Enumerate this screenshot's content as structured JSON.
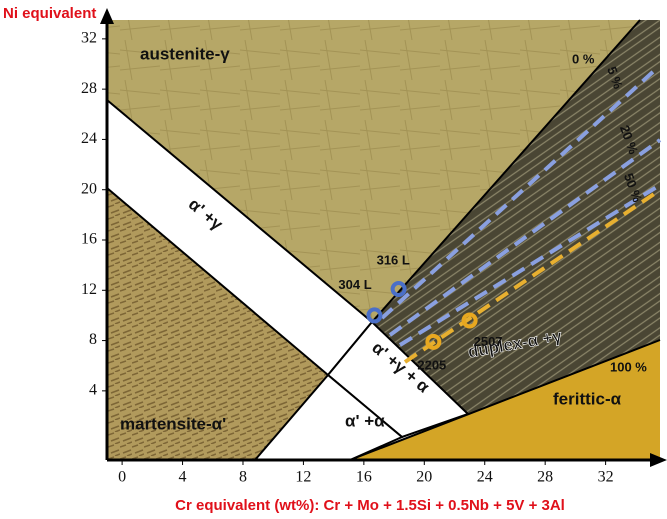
{
  "chart_data": {
    "type": "scatter",
    "y_label": "Ni equivalent",
    "x_label": "Cr equivalent (wt%): Cr + Mo + 1.5Si + 0.5Nb + 5V + 3Al",
    "categories": [
      "304 L",
      "316 L",
      "2205",
      "2507"
    ],
    "x": [
      16.7,
      18.3,
      20.6,
      23.0
    ],
    "values": [
      10.0,
      12.1,
      7.9,
      9.6
    ],
    "colors": [
      "#4a6fc8",
      "#4a6fc8",
      "#e8a820",
      "#e8a820"
    ],
    "annotations": [
      "austenite-γ",
      "α' +γ",
      "martensite-α'",
      "α' +α",
      "α' +γ + α",
      "duplex-α +γ",
      "ferittic-α",
      "0 %",
      "5 %",
      "20 %",
      "50 %",
      "100 %"
    ],
    "xlim": [
      -1,
      35.6
    ],
    "ylim": [
      -1.5,
      33.5
    ],
    "xticks": [
      0,
      4,
      8,
      12,
      16,
      20,
      24,
      28,
      32
    ],
    "yticks": [
      4,
      8,
      12,
      16,
      20,
      24,
      28,
      32
    ]
  }
}
